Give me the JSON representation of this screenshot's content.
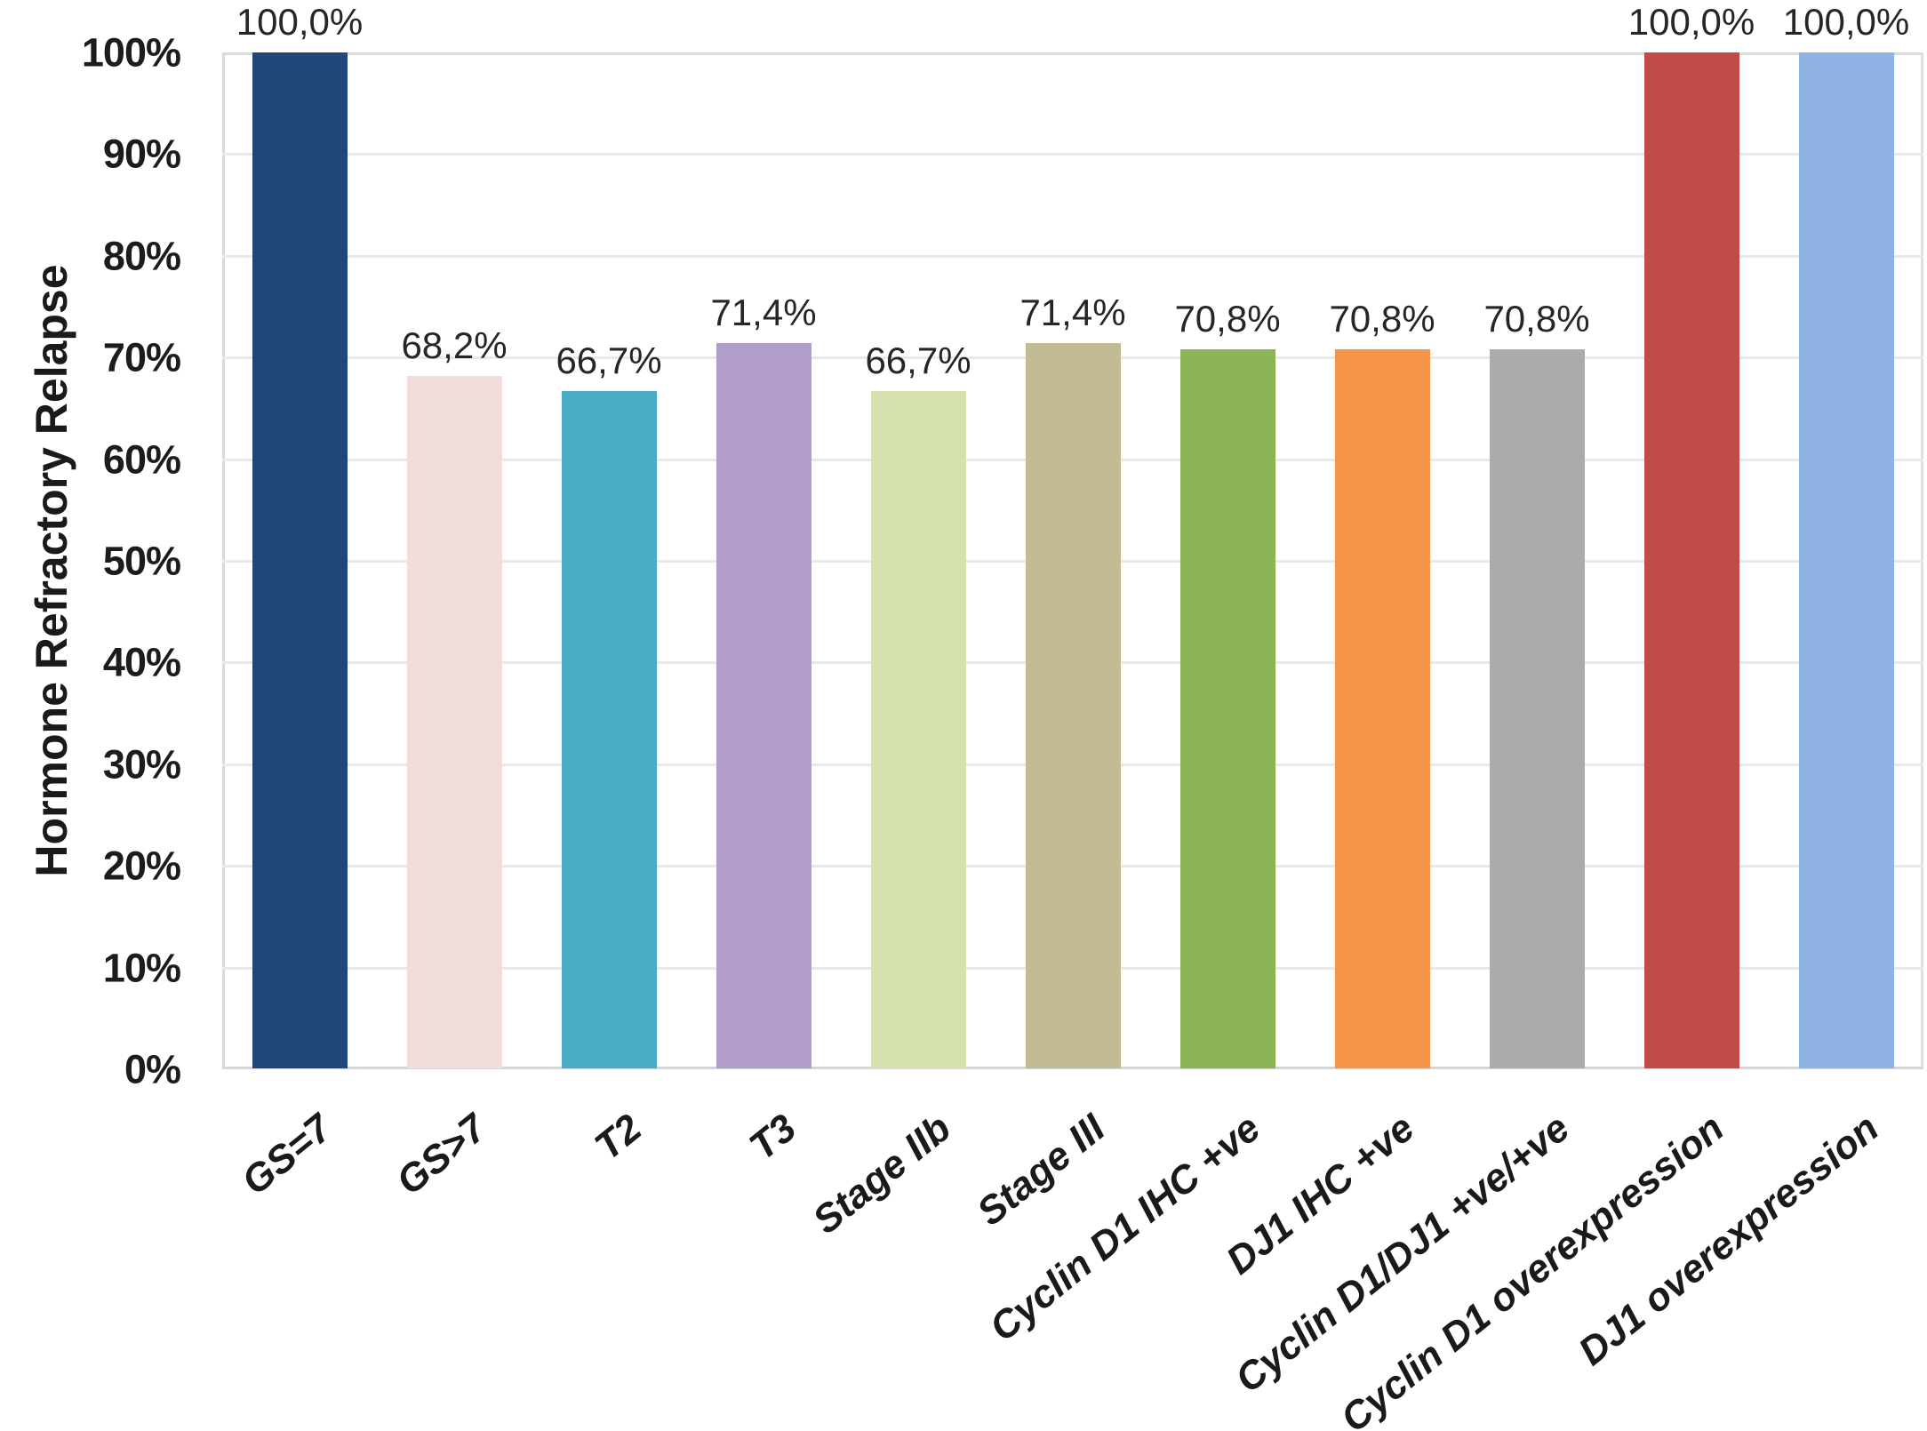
{
  "chart_data": {
    "type": "bar",
    "title": "",
    "xlabel": "",
    "ylabel": "Hormone Refractory Relapse",
    "ylim": [
      0,
      100
    ],
    "grid": true,
    "legend": false,
    "y_ticks": [
      "0%",
      "10%",
      "20%",
      "30%",
      "40%",
      "50%",
      "60%",
      "70%",
      "80%",
      "90%",
      "100%"
    ],
    "categories": [
      "GS=7",
      "GS>7",
      "T2",
      "T3",
      "Stage IIb",
      "Stage III",
      "Cyclin D1 IHC +ve",
      "DJ1 IHC +ve",
      "Cyclin D1/DJ1 +ve/+ve",
      "Cyclin D1 overexpression",
      "DJ1 overexpression"
    ],
    "values": [
      100.0,
      68.2,
      66.7,
      71.4,
      66.7,
      71.4,
      70.8,
      70.8,
      70.8,
      100.0,
      100.0
    ],
    "value_labels": [
      "100,0%",
      "68,2%",
      "66,7%",
      "71,4%",
      "66,7%",
      "71,4%",
      "70,8%",
      "70,8%",
      "70,8%",
      "100,0%",
      "100,0%"
    ],
    "bar_colors": [
      "#204778",
      "#F1DDDC",
      "#4AACC5",
      "#B09DC8",
      "#D5E1AE",
      "#C3BB93",
      "#8DB457",
      "#F4954A",
      "#ABABAE",
      "#C24B47",
      "#8FB3E2"
    ]
  },
  "colors": {
    "gridline": "#E9E9E9",
    "axis_border": "#D9D9D9",
    "tick_text": "#1C1C1C",
    "label_text": "#262626"
  }
}
